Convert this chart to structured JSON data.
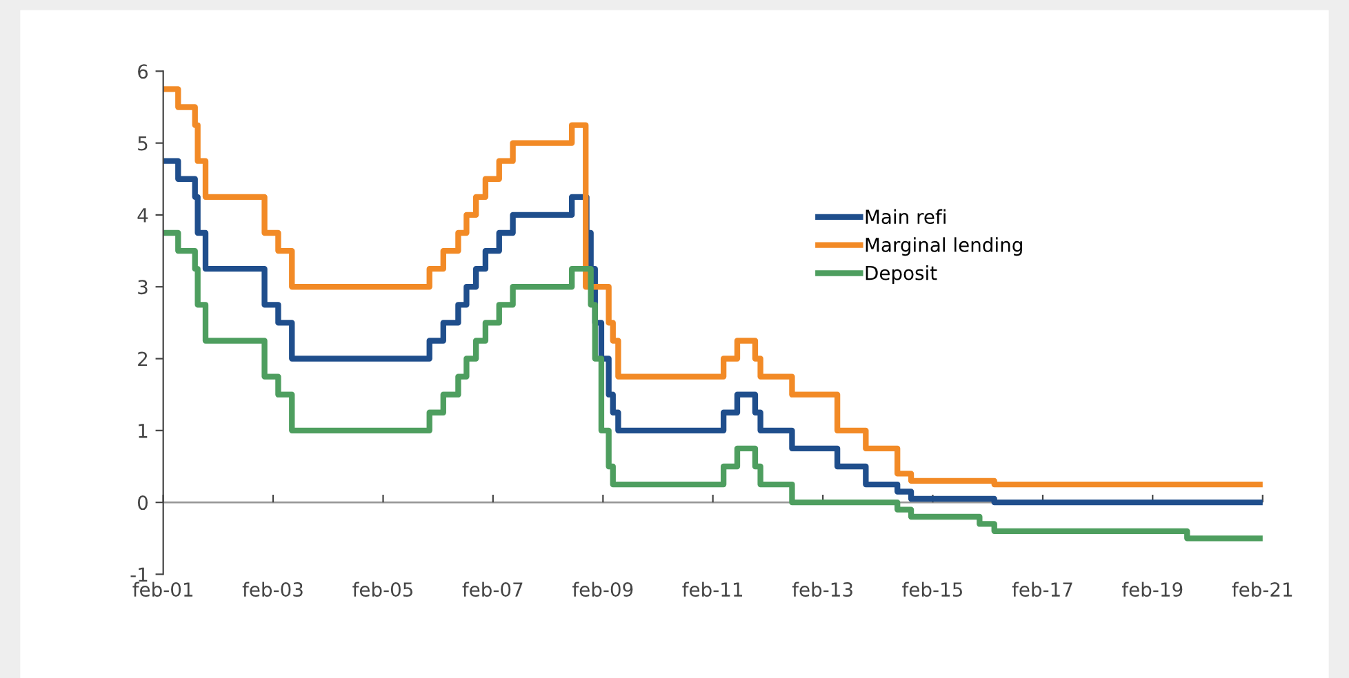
{
  "chart_data": {
    "type": "step",
    "series": [
      {
        "name": "Main refi",
        "color": "#1f4e8c",
        "x": [
          "2001-02-01",
          "2001-05-11",
          "2001-08-31",
          "2001-09-18",
          "2001-11-09",
          "2002-12-06",
          "2003-03-07",
          "2003-06-06",
          "2005-12-06",
          "2006-03-08",
          "2006-06-15",
          "2006-08-09",
          "2006-10-11",
          "2006-12-13",
          "2007-03-14",
          "2007-06-13",
          "2008-07-09",
          "2008-10-15",
          "2008-11-12",
          "2008-12-10",
          "2009-01-21",
          "2009-03-11",
          "2009-04-08",
          "2009-05-13",
          "2011-04-13",
          "2011-07-13",
          "2011-11-09",
          "2011-12-14",
          "2012-07-11",
          "2013-05-08",
          "2013-11-13",
          "2014-06-11",
          "2014-09-10",
          "2016-03-16",
          "2021-02-01"
        ],
        "values": [
          4.75,
          4.5,
          4.25,
          3.75,
          3.25,
          2.75,
          2.5,
          2.0,
          2.25,
          2.5,
          2.75,
          3.0,
          3.25,
          3.5,
          3.75,
          4.0,
          4.25,
          3.75,
          3.25,
          2.5,
          2.0,
          1.5,
          1.25,
          1.0,
          1.25,
          1.5,
          1.25,
          1.0,
          0.75,
          0.5,
          0.25,
          0.15,
          0.05,
          0.0,
          0.0
        ]
      },
      {
        "name": "Marginal lending",
        "color": "#f28a26",
        "x": [
          "2001-02-01",
          "2001-05-11",
          "2001-08-31",
          "2001-09-18",
          "2001-11-09",
          "2002-12-06",
          "2003-03-07",
          "2003-06-06",
          "2005-12-06",
          "2006-03-08",
          "2006-06-15",
          "2006-08-09",
          "2006-10-11",
          "2006-12-13",
          "2007-03-14",
          "2007-06-13",
          "2008-07-09",
          "2008-10-09",
          "2008-11-12",
          "2008-12-10",
          "2009-03-11",
          "2009-04-08",
          "2009-05-13",
          "2011-04-13",
          "2011-07-13",
          "2011-11-09",
          "2011-12-14",
          "2012-07-11",
          "2013-05-08",
          "2013-11-13",
          "2014-06-11",
          "2014-09-10",
          "2016-03-16",
          "2021-02-01"
        ],
        "values": [
          5.75,
          5.5,
          5.25,
          4.75,
          4.25,
          3.75,
          3.5,
          3.0,
          3.25,
          3.5,
          3.75,
          4.0,
          4.25,
          4.5,
          4.75,
          5.0,
          5.25,
          3.0,
          3.0,
          3.0,
          2.5,
          2.25,
          1.75,
          2.0,
          2.25,
          2.0,
          1.75,
          1.5,
          1.0,
          0.75,
          0.4,
          0.3,
          0.25,
          0.25
        ]
      },
      {
        "name": "Deposit",
        "color": "#4e9e5f",
        "x": [
          "2001-02-01",
          "2001-05-11",
          "2001-08-31",
          "2001-09-18",
          "2001-11-09",
          "2002-12-06",
          "2003-03-07",
          "2003-06-06",
          "2005-12-06",
          "2006-03-08",
          "2006-06-15",
          "2006-08-09",
          "2006-10-11",
          "2006-12-13",
          "2007-03-14",
          "2007-06-13",
          "2008-07-09",
          "2008-11-12",
          "2008-12-10",
          "2009-01-21",
          "2009-03-11",
          "2009-04-08",
          "2011-04-13",
          "2011-07-13",
          "2011-11-09",
          "2011-12-14",
          "2012-07-11",
          "2014-06-11",
          "2014-09-10",
          "2015-12-09",
          "2016-03-16",
          "2019-09-18",
          "2021-02-01"
        ],
        "values": [
          3.75,
          3.5,
          3.25,
          2.75,
          2.25,
          1.75,
          1.5,
          1.0,
          1.25,
          1.5,
          1.75,
          2.0,
          2.25,
          2.5,
          2.75,
          3.0,
          3.25,
          2.75,
          2.0,
          1.0,
          0.5,
          0.25,
          0.5,
          0.75,
          0.5,
          0.25,
          0.0,
          -0.1,
          -0.2,
          -0.3,
          -0.4,
          -0.5,
          -0.5
        ]
      }
    ],
    "xlim": [
      "2001-02-01",
      "2021-02-01"
    ],
    "xticks": [
      {
        "value": "2001-02-01",
        "label": "feb-01"
      },
      {
        "value": "2003-02-01",
        "label": "feb-03"
      },
      {
        "value": "2005-02-01",
        "label": "feb-05"
      },
      {
        "value": "2007-02-01",
        "label": "feb-07"
      },
      {
        "value": "2009-02-01",
        "label": "feb-09"
      },
      {
        "value": "2011-02-01",
        "label": "feb-11"
      },
      {
        "value": "2013-02-01",
        "label": "feb-13"
      },
      {
        "value": "2015-02-01",
        "label": "feb-15"
      },
      {
        "value": "2017-02-01",
        "label": "feb-17"
      },
      {
        "value": "2019-02-01",
        "label": "feb-19"
      },
      {
        "value": "2021-02-01",
        "label": "feb-21"
      }
    ],
    "ylim": [
      -1,
      6
    ],
    "yticks": [
      -1,
      0,
      1,
      2,
      3,
      4,
      5,
      6
    ],
    "ref_lines": [
      {
        "axis": "y",
        "value": 0,
        "color": "#999999"
      }
    ],
    "legend": "center right"
  }
}
